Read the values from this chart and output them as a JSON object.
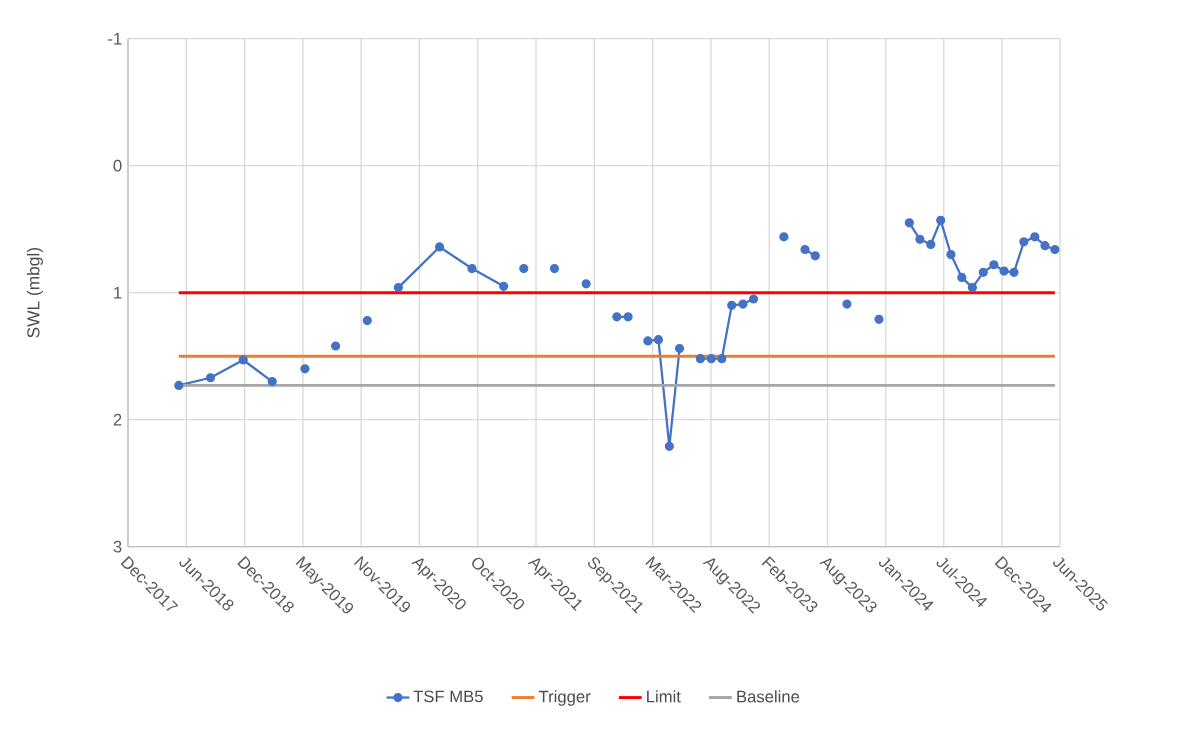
{
  "chart_data": {
    "type": "line",
    "ylabel": "SWL (mbgl)",
    "x": [
      "2018-05-22",
      "2018-08-23",
      "2018-11-27",
      "2019-02-20",
      "2019-04-10",
      "2019-05-27",
      "2019-07-10",
      "2019-08-25",
      "2019-10-10",
      "2019-11-26",
      "2020-01-10",
      "2020-02-25",
      "2020-06-25",
      "2020-09-28",
      "2020-12-30",
      "2021-02-01",
      "2021-02-27",
      "2021-04-10",
      "2021-05-28",
      "2021-07-10",
      "2021-08-29",
      "2021-10-10",
      "2021-11-27",
      "2021-12-30",
      "2022-01-25",
      "2022-02-26",
      "2022-03-29",
      "2022-04-30",
      "2022-05-30",
      "2022-07-01",
      "2022-07-30",
      "2022-08-31",
      "2022-10-01",
      "2022-10-30",
      "2022-12-02",
      "2023-01-02",
      "2023-02-15",
      "2023-04-01",
      "2023-05-01",
      "2023-06-02",
      "2023-07-02",
      "2023-08-15",
      "2023-10-03",
      "2023-11-20",
      "2024-01-05",
      "2024-02-20",
      "2024-04-03",
      "2024-05-04",
      "2024-06-05",
      "2024-07-04",
      "2024-08-03",
      "2024-09-04",
      "2024-10-05",
      "2024-11-06",
      "2024-12-07",
      "2025-01-06",
      "2025-02-04",
      "2025-03-05",
      "2025-04-06",
      "2025-05-06",
      "2025-06-04"
    ],
    "series": [
      {
        "name": "TSF MB5",
        "color": "#4472c4",
        "marker": "circle",
        "values": [
          1.73,
          1.67,
          1.53,
          1.7,
          null,
          1.6,
          null,
          1.42,
          null,
          1.22,
          null,
          0.96,
          0.64,
          0.81,
          0.95,
          null,
          0.81,
          null,
          0.81,
          null,
          0.93,
          null,
          1.19,
          1.19,
          null,
          1.38,
          1.37,
          2.21,
          1.44,
          null,
          1.52,
          1.52,
          1.52,
          1.1,
          1.09,
          1.05,
          null,
          0.56,
          null,
          0.66,
          0.71,
          null,
          1.09,
          null,
          1.21,
          null,
          0.45,
          0.58,
          0.62,
          0.43,
          0.7,
          0.88,
          0.96,
          0.84,
          0.78,
          0.83,
          0.84,
          0.6,
          0.56,
          0.63,
          0.66
        ]
      },
      {
        "name": "Trigger",
        "color": "#ed7d31",
        "marker": "none",
        "x": [
          "2018-05-22",
          "2025-06-04"
        ],
        "values": [
          1.5,
          1.5
        ]
      },
      {
        "name": "Limit",
        "color": "#ff0000",
        "marker": "none",
        "x": [
          "2018-05-22",
          "2025-06-04"
        ],
        "values": [
          1.0,
          1.0
        ]
      },
      {
        "name": "Baseline",
        "color": "#a5a5a5",
        "marker": "none",
        "x": [
          "2018-05-22",
          "2025-06-04"
        ],
        "values": [
          1.73,
          1.73
        ]
      }
    ],
    "xlim": [
      "2017-12-24",
      "2025-06-19"
    ],
    "xticks": [
      {
        "value": "2017-12-24",
        "label": "Dec-2017"
      },
      {
        "value": "2018-06-13",
        "label": "Jun-2018"
      },
      {
        "value": "2018-12-01",
        "label": "Dec-2018"
      },
      {
        "value": "2019-05-21",
        "label": "May-2019"
      },
      {
        "value": "2019-11-08",
        "label": "Nov-2019"
      },
      {
        "value": "2020-04-27",
        "label": "Apr-2020"
      },
      {
        "value": "2020-10-15",
        "label": "Oct-2020"
      },
      {
        "value": "2021-04-04",
        "label": "Apr-2021"
      },
      {
        "value": "2021-09-22",
        "label": "Sep-2021"
      },
      {
        "value": "2022-03-12",
        "label": "Mar-2022"
      },
      {
        "value": "2022-08-30",
        "label": "Aug-2022"
      },
      {
        "value": "2023-02-17",
        "label": "Feb-2023"
      },
      {
        "value": "2023-08-07",
        "label": "Aug-2023"
      },
      {
        "value": "2024-01-25",
        "label": "Jan-2024"
      },
      {
        "value": "2024-07-13",
        "label": "Jul-2024"
      },
      {
        "value": "2024-12-31",
        "label": "Dec-2024"
      },
      {
        "value": "2025-06-19",
        "label": "Jun-2025"
      }
    ],
    "ylim": [
      3,
      -1
    ],
    "yticks": [
      -1,
      0,
      1,
      2,
      3
    ],
    "grid": true,
    "legend": "bottom"
  }
}
